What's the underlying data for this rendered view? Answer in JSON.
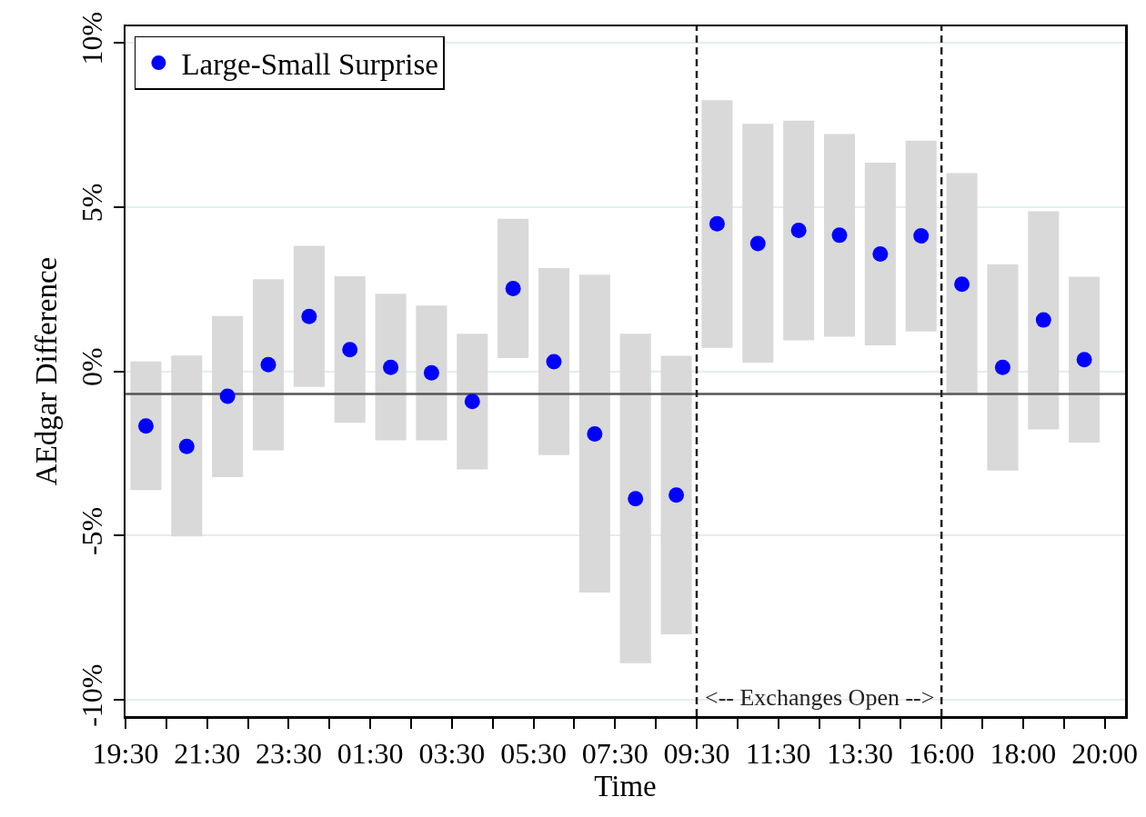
{
  "chart_data": {
    "type": "scatter",
    "xlabel": "Time",
    "ylabel": "AEdgar Difference",
    "categories": [
      "19:30",
      null,
      null,
      null,
      "21:30",
      null,
      null,
      null,
      "23:30",
      null,
      null,
      null,
      "01:30",
      null,
      null,
      null,
      "03:30",
      null,
      null,
      null,
      "05:30",
      null,
      null,
      null,
      "07:30",
      null,
      null,
      null,
      "09:30",
      null,
      null,
      null,
      "11:30",
      null,
      null,
      null,
      "13:30",
      null,
      null,
      null,
      "16:00",
      null,
      null,
      null,
      "18:00",
      null,
      null,
      null,
      "20:00"
    ],
    "series": [
      {
        "name": "Large-Small Surprise",
        "color": "#0000ff",
        "values": [
          null,
          -1.67,
          null,
          -2.29,
          null,
          -0.76,
          null,
          0.2,
          null,
          1.67,
          null,
          0.66,
          null,
          0.12,
          null,
          -0.05,
          null,
          -0.92,
          null,
          2.52,
          null,
          0.29,
          null,
          -1.91,
          null,
          -3.88,
          null,
          -3.77,
          null,
          4.49,
          null,
          3.89,
          null,
          4.29,
          null,
          4.14,
          null,
          3.57,
          null,
          4.12,
          null,
          2.65,
          null,
          0.12,
          null,
          1.56,
          null,
          0.35,
          null
        ],
        "errors": [
          null,
          [
            -3.62,
            0.3
          ],
          null,
          [
            -5.03,
            0.48
          ],
          null,
          [
            -3.22,
            1.68
          ],
          null,
          [
            -2.41,
            2.8
          ],
          null,
          [
            -0.48,
            3.82
          ],
          null,
          [
            -1.57,
            2.89
          ],
          null,
          [
            -2.1,
            2.36
          ],
          null,
          [
            -2.1,
            2.0
          ],
          null,
          [
            -2.99,
            1.14
          ],
          null,
          [
            0.4,
            4.64
          ],
          null,
          [
            -2.55,
            3.14
          ],
          null,
          [
            -6.74,
            2.94
          ],
          null,
          [
            -8.89,
            1.14
          ],
          null,
          [
            -8.01,
            0.47
          ],
          null,
          [
            0.71,
            8.25
          ],
          null,
          [
            0.26,
            7.53
          ],
          null,
          [
            0.94,
            7.63
          ],
          null,
          [
            1.05,
            7.22
          ],
          null,
          [
            0.79,
            6.35
          ],
          null,
          [
            1.21,
            7.02
          ],
          null,
          [
            -0.67,
            6.03
          ],
          null,
          [
            -3.02,
            3.26
          ],
          null,
          [
            -1.77,
            4.87
          ],
          null,
          [
            -2.17,
            2.88
          ],
          null
        ]
      }
    ],
    "ylim": [
      -10.5,
      10.5
    ],
    "yticks": [
      {
        "value": -10,
        "label": "-10%"
      },
      {
        "value": -5,
        "label": "-5%"
      },
      {
        "value": 0,
        "label": "0%"
      },
      {
        "value": 5,
        "label": "5%"
      },
      {
        "value": 10,
        "label": "10%"
      }
    ],
    "ref_lines": [
      {
        "axis": "y",
        "value": -0.69,
        "color": "#555555"
      },
      {
        "axis": "x",
        "value": "09:30",
        "color": "#222222",
        "line_style": "dashed"
      },
      {
        "axis": "x",
        "value": "16:00",
        "color": "#222222",
        "line_style": "dashed"
      }
    ],
    "annotations": [
      "<-- Exchanges Open -->"
    ],
    "grid": "y",
    "legend": "top left",
    "marker": "circle"
  }
}
